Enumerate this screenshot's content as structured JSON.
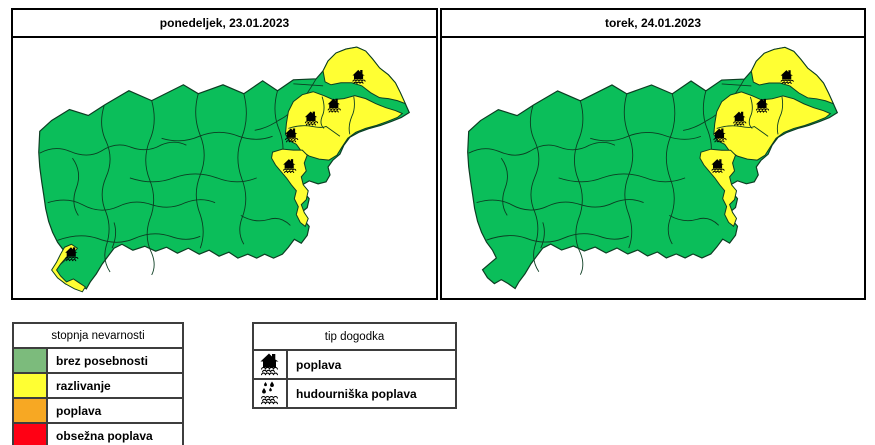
{
  "days": [
    {
      "title": "ponedeljek, 23.01.2023",
      "flood_icons": [
        "ne1",
        "ne2",
        "ne3",
        "ne4",
        "ne5",
        "sw"
      ],
      "sw_coast_yellow": true,
      "ne_yellow": true
    },
    {
      "title": "torek, 24.01.2023",
      "flood_icons": [
        "ne1",
        "ne2",
        "ne3",
        "ne4",
        "ne5"
      ],
      "sw_coast_yellow": false,
      "ne_yellow": true
    }
  ],
  "legend_danger": {
    "title": "stopnja nevarnosti",
    "rows": [
      {
        "color": "#7CBB7C",
        "label": "brez posebnosti"
      },
      {
        "color": "#FFFF33",
        "label": "razlivanje"
      },
      {
        "color": "#F7A823",
        "label": "poplava"
      },
      {
        "color": "#FF0014",
        "label": "obsežna poplava"
      }
    ]
  },
  "legend_event": {
    "title": "tip dogodka",
    "rows": [
      {
        "icon": "flood-icon",
        "label": "poplava"
      },
      {
        "icon": "flash-flood-icon",
        "label": "hudourniška poplava"
      }
    ]
  },
  "colors": {
    "map_green": "#0BBE5A",
    "map_yellow": "#FFFF33",
    "map_border": "#0C3D22"
  }
}
